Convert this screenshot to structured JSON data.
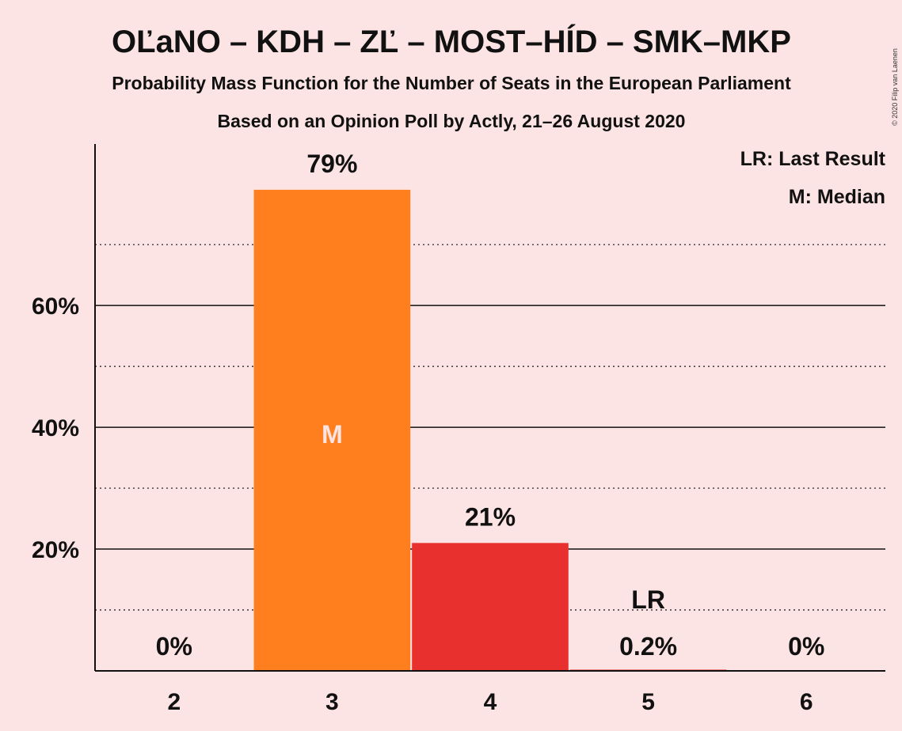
{
  "chart_data": {
    "type": "bar",
    "title": "OĽaNO – KDH – ZĽ – MOST–HÍD – SMK–MKP",
    "subtitle": "Probability Mass Function for the Number of Seats in the European Parliament",
    "subtitle2": "Based on an Opinion Poll by Actly, 21–26 August 2020",
    "copyright": "© 2020 Filip van Laenen",
    "categories": [
      "2",
      "3",
      "4",
      "5",
      "6"
    ],
    "values": [
      0,
      79,
      21,
      0.2,
      0
    ],
    "value_labels": [
      "0%",
      "79%",
      "21%",
      "0.2%",
      "0%"
    ],
    "bar_colors": [
      "#ff7f1e",
      "#ff7f1e",
      "#e8302f",
      "#e8302f",
      "#e8302f"
    ],
    "median_category": "3",
    "median_marker": "M",
    "last_result_category": "5",
    "last_result_marker": "LR",
    "ylim": [
      0,
      86
    ],
    "yticks": [
      20,
      40,
      60
    ],
    "ytick_labels": [
      "20%",
      "40%",
      "60%"
    ],
    "minor_gridlines": [
      10,
      30,
      50,
      70
    ],
    "legend": [
      "LR: Last Result",
      "M: Median"
    ],
    "legend_position": "top-right",
    "xlabel": "",
    "ylabel": ""
  }
}
